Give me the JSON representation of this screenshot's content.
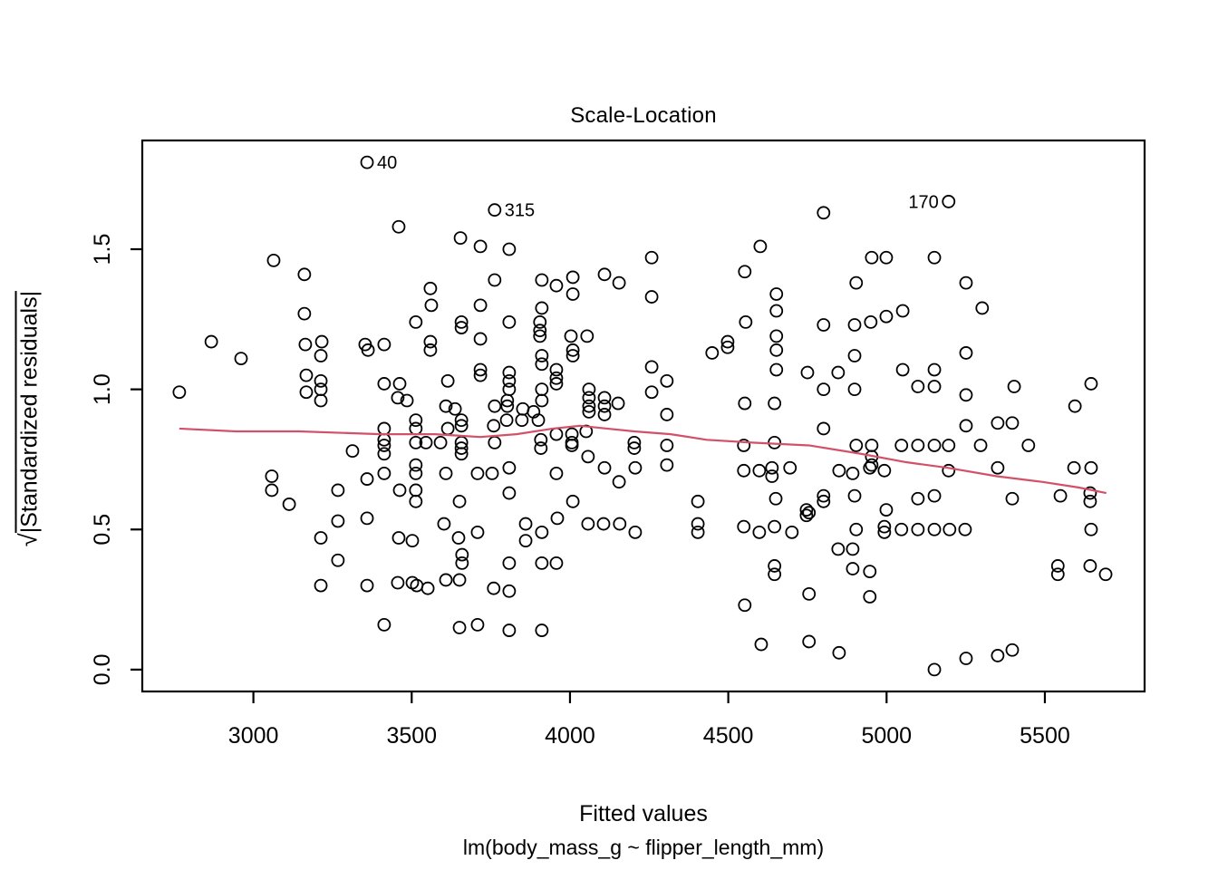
{
  "title": "Scale-Location",
  "x_axis": {
    "label": "Fitted values",
    "tick_labels": [
      "3000",
      "3500",
      "4000",
      "4500",
      "5000",
      "5500"
    ],
    "tick_values": [
      3000,
      3500,
      4000,
      4500,
      5000,
      5500
    ]
  },
  "y_axis": {
    "radical": "√",
    "radicand": "|Standardized residuals|",
    "tick_labels": [
      "0.0",
      "0.5",
      "1.0",
      "1.5"
    ],
    "tick_values": [
      0.0,
      0.5,
      1.0,
      1.5
    ]
  },
  "sub_label": "lm(body_mass_g ~ flipper_length_mm)",
  "colors": {
    "points": "#000000",
    "smoother": "#d25168",
    "axis": "#000000"
  },
  "chart_data": {
    "type": "scatter",
    "title": "Scale-Location",
    "xlabel": "Fitted values",
    "ylabel": "sqrt(|Standardized residuals|)",
    "x_range": [
      2649,
      5815
    ],
    "y_range": [
      -0.078,
      1.888
    ],
    "grid": false,
    "labeled_points": [
      {
        "label": "40",
        "x": 3359,
        "y": 1.81,
        "side": "right"
      },
      {
        "label": "315",
        "x": 3762,
        "y": 1.64,
        "side": "right"
      },
      {
        "label": "170",
        "x": 5196,
        "y": 1.67,
        "side": "left"
      }
    ],
    "smoother": {
      "points": [
        [
          2766,
          0.86
        ],
        [
          2944,
          0.85
        ],
        [
          3144,
          0.85
        ],
        [
          3402,
          0.84
        ],
        [
          3573,
          0.84
        ],
        [
          3717,
          0.83
        ],
        [
          3831,
          0.84
        ],
        [
          3946,
          0.86
        ],
        [
          4031,
          0.87
        ],
        [
          4117,
          0.86
        ],
        [
          4203,
          0.85
        ],
        [
          4318,
          0.84
        ],
        [
          4432,
          0.82
        ],
        [
          4575,
          0.81
        ],
        [
          4755,
          0.8
        ],
        [
          4919,
          0.77
        ],
        [
          5062,
          0.74
        ],
        [
          5193,
          0.72
        ],
        [
          5348,
          0.69
        ],
        [
          5491,
          0.67
        ],
        [
          5606,
          0.65
        ],
        [
          5694,
          0.63
        ]
      ]
    },
    "points": [
      [
        3459,
        1.58
      ],
      [
        3654,
        1.54
      ],
      [
        3064,
        1.46
      ],
      [
        3161,
        1.41
      ],
      [
        3161,
        1.27
      ],
      [
        3559,
        1.36
      ],
      [
        3562,
        1.3
      ],
      [
        3513,
        1.24
      ],
      [
        3657,
        1.24
      ],
      [
        3657,
        1.22
      ],
      [
        2867,
        1.17
      ],
      [
        2961,
        1.11
      ],
      [
        3164,
        1.16
      ],
      [
        3216,
        1.17
      ],
      [
        3353,
        1.16
      ],
      [
        3362,
        1.14
      ],
      [
        3413,
        1.16
      ],
      [
        3559,
        1.17
      ],
      [
        3559,
        1.14
      ],
      [
        3213,
        1.12
      ],
      [
        3167,
        1.05
      ],
      [
        3213,
        1.03
      ],
      [
        3213,
        1.0
      ],
      [
        3167,
        0.99
      ],
      [
        3213,
        0.96
      ],
      [
        2766,
        0.99
      ],
      [
        3413,
        1.02
      ],
      [
        3462,
        1.02
      ],
      [
        3456,
        0.97
      ],
      [
        3485,
        0.96
      ],
      [
        3614,
        1.03
      ],
      [
        3608,
        0.94
      ],
      [
        3637,
        0.93
      ],
      [
        3717,
        1.51
      ],
      [
        3808,
        1.5
      ],
      [
        3762,
        1.39
      ],
      [
        3717,
        1.3
      ],
      [
        3808,
        1.24
      ],
      [
        3717,
        1.18
      ],
      [
        3911,
        1.39
      ],
      [
        3957,
        1.37
      ],
      [
        4009,
        1.4
      ],
      [
        4009,
        1.34
      ],
      [
        4109,
        1.41
      ],
      [
        4155,
        1.38
      ],
      [
        4258,
        1.47
      ],
      [
        4258,
        1.33
      ],
      [
        3911,
        1.29
      ],
      [
        3905,
        1.24
      ],
      [
        3905,
        1.21
      ],
      [
        3905,
        1.19
      ],
      [
        3808,
        1.06
      ],
      [
        3808,
        1.03
      ],
      [
        3808,
        1.0
      ],
      [
        3911,
        1.12
      ],
      [
        3911,
        1.09
      ],
      [
        4003,
        1.19
      ],
      [
        4054,
        1.19
      ],
      [
        4009,
        1.14
      ],
      [
        4009,
        1.12
      ],
      [
        3957,
        1.07
      ],
      [
        3957,
        1.04
      ],
      [
        3957,
        1.02
      ],
      [
        3911,
        1.0
      ],
      [
        3911,
        0.96
      ],
      [
        3717,
        1.07
      ],
      [
        3717,
        1.05
      ],
      [
        3802,
        0.96
      ],
      [
        3802,
        0.94
      ],
      [
        3762,
        0.94
      ],
      [
        3851,
        0.93
      ],
      [
        3885,
        0.92
      ],
      [
        4060,
        1.0
      ],
      [
        4060,
        0.97
      ],
      [
        4060,
        0.94
      ],
      [
        4060,
        0.92
      ],
      [
        4109,
        0.97
      ],
      [
        4109,
        0.94
      ],
      [
        4109,
        0.91
      ],
      [
        4152,
        0.95
      ],
      [
        4258,
        1.08
      ],
      [
        4306,
        1.03
      ],
      [
        4258,
        0.99
      ],
      [
        4306,
        0.91
      ],
      [
        4601,
        1.51
      ],
      [
        4552,
        1.42
      ],
      [
        4449,
        1.13
      ],
      [
        4498,
        1.15
      ],
      [
        4498,
        1.17
      ],
      [
        4555,
        1.24
      ],
      [
        4652,
        1.34
      ],
      [
        4652,
        1.28
      ],
      [
        4652,
        1.19
      ],
      [
        4652,
        1.14
      ],
      [
        4652,
        1.07
      ],
      [
        4750,
        1.06
      ],
      [
        4552,
        0.95
      ],
      [
        4646,
        0.95
      ],
      [
        3413,
        0.86
      ],
      [
        3513,
        0.89
      ],
      [
        3513,
        0.86
      ],
      [
        3313,
        0.78
      ],
      [
        3413,
        0.82
      ],
      [
        3413,
        0.8
      ],
      [
        3413,
        0.77
      ],
      [
        3513,
        0.81
      ],
      [
        3545,
        0.81
      ],
      [
        3591,
        0.81
      ],
      [
        3614,
        0.86
      ],
      [
        3657,
        0.87
      ],
      [
        3657,
        0.89
      ],
      [
        3657,
        0.81
      ],
      [
        3657,
        0.79
      ],
      [
        3657,
        0.77
      ],
      [
        3058,
        0.69
      ],
      [
        3058,
        0.64
      ],
      [
        3113,
        0.59
      ],
      [
        3359,
        0.68
      ],
      [
        3413,
        0.7
      ],
      [
        3513,
        0.73
      ],
      [
        3513,
        0.7
      ],
      [
        3462,
        0.64
      ],
      [
        3513,
        0.64
      ],
      [
        3513,
        0.6
      ],
      [
        3267,
        0.64
      ],
      [
        3608,
        0.7
      ],
      [
        3651,
        0.6
      ],
      [
        3267,
        0.53
      ],
      [
        3359,
        0.54
      ],
      [
        3602,
        0.52
      ],
      [
        3213,
        0.47
      ],
      [
        3459,
        0.47
      ],
      [
        3502,
        0.46
      ],
      [
        3648,
        0.47
      ],
      [
        3659,
        0.41
      ],
      [
        3659,
        0.38
      ],
      [
        3267,
        0.39
      ],
      [
        3213,
        0.3
      ],
      [
        3359,
        0.3
      ],
      [
        3456,
        0.31
      ],
      [
        3502,
        0.31
      ],
      [
        3516,
        0.3
      ],
      [
        3551,
        0.29
      ],
      [
        3608,
        0.32
      ],
      [
        3651,
        0.32
      ],
      [
        3413,
        0.16
      ],
      [
        3651,
        0.15
      ],
      [
        3800,
        0.89
      ],
      [
        3848,
        0.89
      ],
      [
        3900,
        0.89
      ],
      [
        3759,
        0.87
      ],
      [
        3762,
        0.81
      ],
      [
        3908,
        0.82
      ],
      [
        3908,
        0.79
      ],
      [
        3957,
        0.84
      ],
      [
        4006,
        0.84
      ],
      [
        4006,
        0.81
      ],
      [
        4006,
        0.8
      ],
      [
        4051,
        0.85
      ],
      [
        4057,
        0.76
      ],
      [
        4203,
        0.81
      ],
      [
        4203,
        0.79
      ],
      [
        4306,
        0.8
      ],
      [
        4549,
        0.8
      ],
      [
        4646,
        0.81
      ],
      [
        3708,
        0.7
      ],
      [
        3754,
        0.7
      ],
      [
        3808,
        0.72
      ],
      [
        3957,
        0.7
      ],
      [
        4109,
        0.72
      ],
      [
        4155,
        0.67
      ],
      [
        4206,
        0.72
      ],
      [
        4306,
        0.73
      ],
      [
        4549,
        0.71
      ],
      [
        4598,
        0.71
      ],
      [
        4638,
        0.72
      ],
      [
        4638,
        0.69
      ],
      [
        4695,
        0.72
      ],
      [
        3808,
        0.63
      ],
      [
        4009,
        0.6
      ],
      [
        4404,
        0.6
      ],
      [
        4650,
        0.61
      ],
      [
        4747,
        0.57
      ],
      [
        4747,
        0.55
      ],
      [
        3960,
        0.54
      ],
      [
        3860,
        0.52
      ],
      [
        3860,
        0.46
      ],
      [
        3911,
        0.49
      ],
      [
        3708,
        0.49
      ],
      [
        4057,
        0.52
      ],
      [
        4106,
        0.52
      ],
      [
        4157,
        0.52
      ],
      [
        4206,
        0.49
      ],
      [
        4404,
        0.52
      ],
      [
        4404,
        0.49
      ],
      [
        4549,
        0.51
      ],
      [
        4598,
        0.49
      ],
      [
        4646,
        0.51
      ],
      [
        4701,
        0.49
      ],
      [
        3808,
        0.38
      ],
      [
        3911,
        0.38
      ],
      [
        3957,
        0.38
      ],
      [
        4646,
        0.37
      ],
      [
        4646,
        0.34
      ],
      [
        3759,
        0.29
      ],
      [
        3808,
        0.28
      ],
      [
        4552,
        0.23
      ],
      [
        3708,
        0.16
      ],
      [
        3808,
        0.14
      ],
      [
        3911,
        0.14
      ],
      [
        4604,
        0.09
      ],
      [
        4801,
        1.63
      ],
      [
        4953,
        1.47
      ],
      [
        4999,
        1.47
      ],
      [
        5151,
        1.47
      ],
      [
        4904,
        1.38
      ],
      [
        5251,
        1.38
      ],
      [
        5051,
        1.28
      ],
      [
        5302,
        1.29
      ],
      [
        4999,
        1.26
      ],
      [
        4899,
        1.23
      ],
      [
        4950,
        1.24
      ],
      [
        4801,
        1.23
      ],
      [
        4899,
        1.12
      ],
      [
        4847,
        1.06
      ],
      [
        5051,
        1.07
      ],
      [
        5151,
        1.07
      ],
      [
        5251,
        1.13
      ],
      [
        4801,
        1.0
      ],
      [
        4899,
        1.0
      ],
      [
        5099,
        1.01
      ],
      [
        5151,
        1.01
      ],
      [
        5251,
        0.98
      ],
      [
        5403,
        1.01
      ],
      [
        5646,
        1.02
      ],
      [
        5595,
        0.94
      ],
      [
        4801,
        0.86
      ],
      [
        5251,
        0.87
      ],
      [
        5351,
        0.88
      ],
      [
        5397,
        0.88
      ],
      [
        4904,
        0.8
      ],
      [
        4953,
        0.8
      ],
      [
        4953,
        0.76
      ],
      [
        4953,
        0.73
      ],
      [
        5047,
        0.8
      ],
      [
        5099,
        0.8
      ],
      [
        5151,
        0.8
      ],
      [
        5196,
        0.8
      ],
      [
        5297,
        0.8
      ],
      [
        5448,
        0.8
      ],
      [
        4850,
        0.71
      ],
      [
        4893,
        0.7
      ],
      [
        4947,
        0.72
      ],
      [
        4993,
        0.71
      ],
      [
        5196,
        0.71
      ],
      [
        5351,
        0.72
      ],
      [
        5592,
        0.72
      ],
      [
        5646,
        0.72
      ],
      [
        4801,
        0.62
      ],
      [
        4801,
        0.6
      ],
      [
        4899,
        0.62
      ],
      [
        5099,
        0.61
      ],
      [
        5151,
        0.62
      ],
      [
        5397,
        0.61
      ],
      [
        5549,
        0.62
      ],
      [
        5643,
        0.63
      ],
      [
        5643,
        0.6
      ],
      [
        4755,
        0.56
      ],
      [
        4999,
        0.57
      ],
      [
        4904,
        0.5
      ],
      [
        4993,
        0.51
      ],
      [
        4993,
        0.49
      ],
      [
        5047,
        0.5
      ],
      [
        5099,
        0.5
      ],
      [
        5151,
        0.5
      ],
      [
        5199,
        0.5
      ],
      [
        5248,
        0.5
      ],
      [
        5646,
        0.5
      ],
      [
        4847,
        0.43
      ],
      [
        4893,
        0.43
      ],
      [
        4893,
        0.36
      ],
      [
        4947,
        0.35
      ],
      [
        5541,
        0.37
      ],
      [
        5541,
        0.34
      ],
      [
        5643,
        0.37
      ],
      [
        5692,
        0.34
      ],
      [
        4755,
        0.27
      ],
      [
        4947,
        0.26
      ],
      [
        4755,
        0.1
      ],
      [
        4850,
        0.06
      ],
      [
        5151,
        0.0
      ],
      [
        5251,
        0.04
      ],
      [
        5351,
        0.05
      ],
      [
        5397,
        0.07
      ]
    ]
  }
}
